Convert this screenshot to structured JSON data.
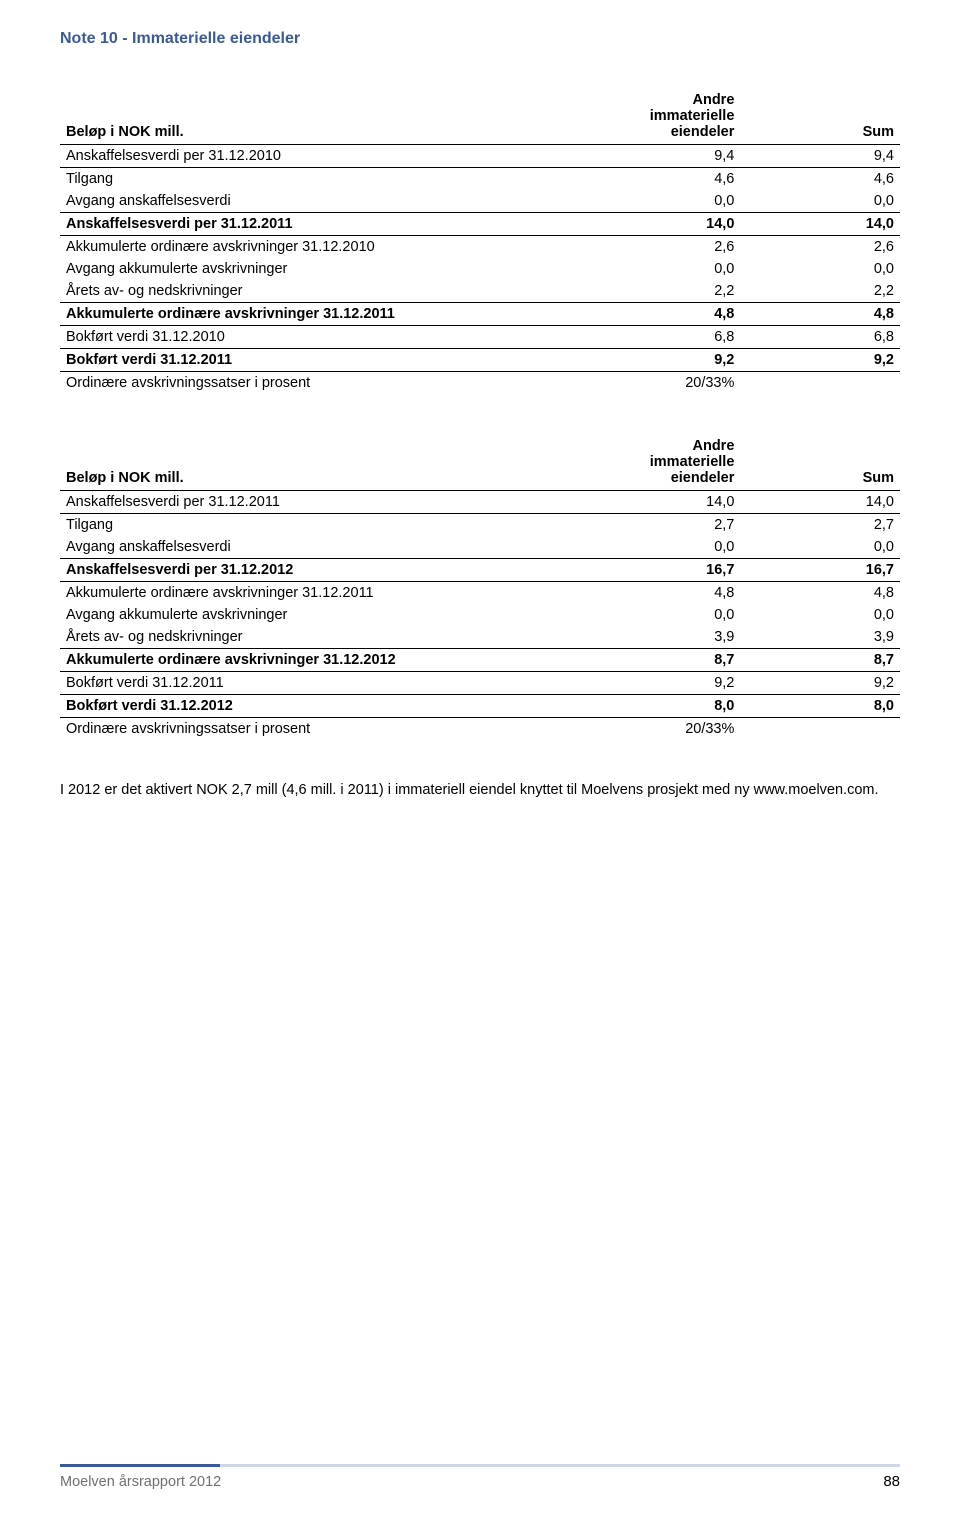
{
  "title": "Note 10 - Immaterielle eiendeler",
  "table1": {
    "header": {
      "label": "Beløp i NOK mill.",
      "col1_line1": "Andre",
      "col1_line2": "immaterielle",
      "col1_line3": "eiendeler",
      "col2": "Sum"
    },
    "rows": [
      {
        "label": "Anskaffelsesverdi per 31.12.2010",
        "v1": "9,4",
        "v2": "9,4",
        "rule": true
      },
      {
        "label": "Tilgang",
        "v1": "4,6",
        "v2": "4,6"
      },
      {
        "label": "Avgang anskaffelsesverdi",
        "v1": "0,0",
        "v2": "0,0",
        "rule": true
      },
      {
        "label": "Anskaffelsesverdi per 31.12.2011",
        "v1": "14,0",
        "v2": "14,0",
        "bold": true,
        "rule": true
      },
      {
        "label": "Akkumulerte ordinære avskrivninger 31.12.2010",
        "v1": "2,6",
        "v2": "2,6"
      },
      {
        "label": "Avgang akkumulerte avskrivninger",
        "v1": "0,0",
        "v2": "0,0"
      },
      {
        "label": "Årets av- og nedskrivninger",
        "v1": "2,2",
        "v2": "2,2",
        "rule": true
      },
      {
        "label": "Akkumulerte ordinære avskrivninger 31.12.2011",
        "v1": "4,8",
        "v2": "4,8",
        "bold": true,
        "rule": true
      },
      {
        "label": "Bokført verdi 31.12.2010",
        "v1": "6,8",
        "v2": "6,8",
        "rule": true
      },
      {
        "label": "Bokført verdi 31.12.2011",
        "v1": "9,2",
        "v2": "9,2",
        "bold": true,
        "rule": true
      },
      {
        "label": "Ordinære avskrivningssatser i prosent",
        "v1": "20/33%",
        "v2": ""
      }
    ]
  },
  "table2": {
    "header": {
      "label": "Beløp i NOK mill.",
      "col1_line1": "Andre",
      "col1_line2": "immaterielle",
      "col1_line3": "eiendeler",
      "col2": "Sum"
    },
    "rows": [
      {
        "label": "Anskaffelsesverdi per 31.12.2011",
        "v1": "14,0",
        "v2": "14,0",
        "rule": true
      },
      {
        "label": "Tilgang",
        "v1": "2,7",
        "v2": "2,7"
      },
      {
        "label": "Avgang anskaffelsesverdi",
        "v1": "0,0",
        "v2": "0,0",
        "rule": true
      },
      {
        "label": "Anskaffelsesverdi per 31.12.2012",
        "v1": "16,7",
        "v2": "16,7",
        "bold": true,
        "rule": true
      },
      {
        "label": "Akkumulerte ordinære avskrivninger 31.12.2011",
        "v1": "4,8",
        "v2": "4,8"
      },
      {
        "label": "Avgang akkumulerte avskrivninger",
        "v1": "0,0",
        "v2": "0,0"
      },
      {
        "label": "Årets av- og nedskrivninger",
        "v1": "3,9",
        "v2": "3,9",
        "rule": true
      },
      {
        "label": "Akkumulerte ordinære avskrivninger 31.12.2012",
        "v1": "8,7",
        "v2": "8,7",
        "bold": true,
        "rule": true
      },
      {
        "label": "Bokført verdi 31.12.2011",
        "v1": "9,2",
        "v2": "9,2",
        "rule": true
      },
      {
        "label": "Bokført verdi 31.12.2012",
        "v1": "8,0",
        "v2": "8,0",
        "bold": true,
        "rule": true
      },
      {
        "label": "Ordinære avskrivningssatser i prosent",
        "v1": "20/33%",
        "v2": ""
      }
    ]
  },
  "footnote": "I 2012 er det aktivert NOK 2,7 mill (4,6 mill. i 2011) i immateriell eiendel knyttet til Moelvens prosjekt med ny www.moelven.com.",
  "footer": {
    "left": "Moelven årsrapport 2012",
    "page": "88"
  },
  "colors": {
    "heading": "#3b5998",
    "footer_rule_bg": "#cfd8e6",
    "footer_text": "#707070"
  }
}
